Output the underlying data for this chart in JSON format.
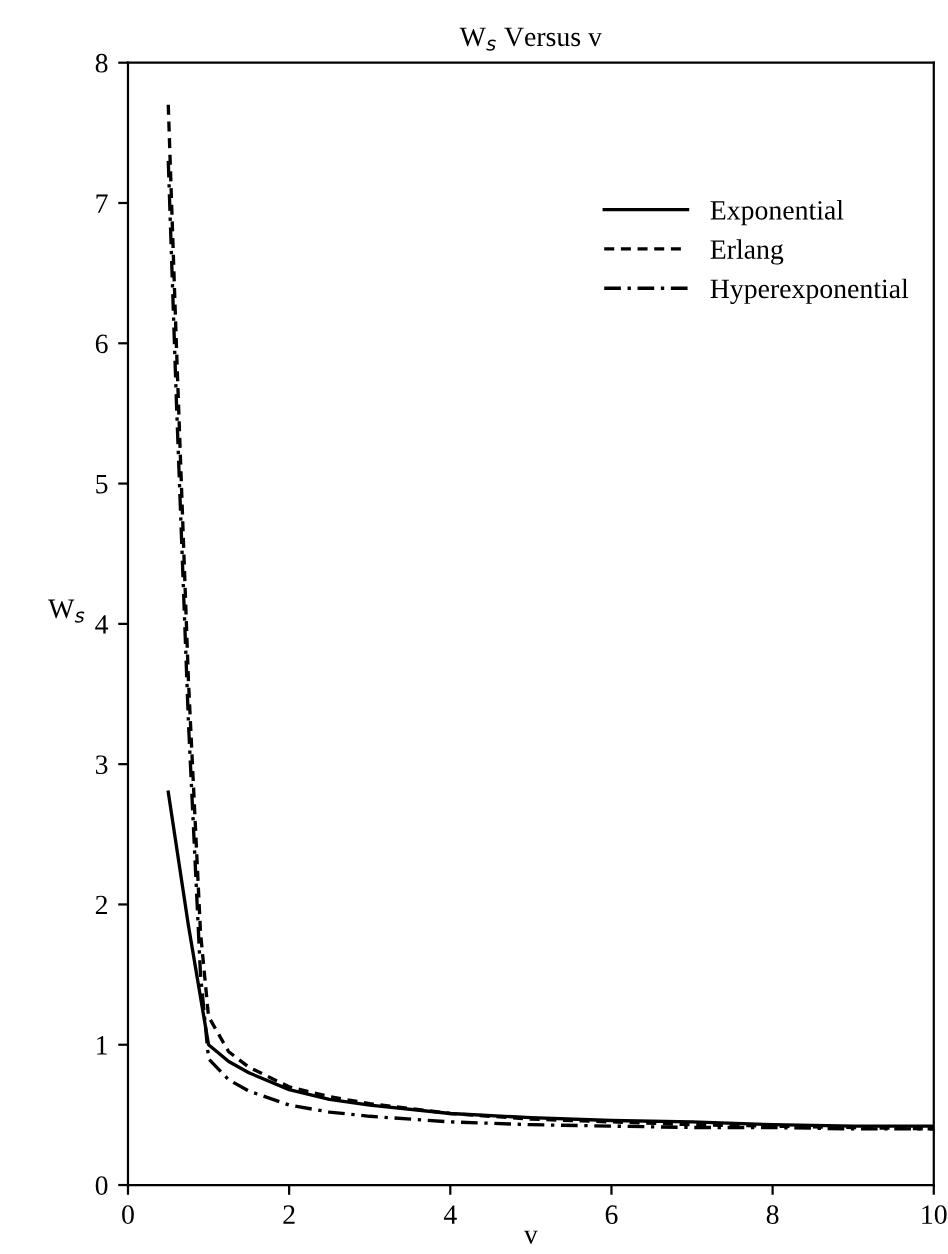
{
  "chart_data": {
    "type": "line",
    "title": "W$_{s}$ Versus v",
    "xlabel": "v",
    "ylabel": "W$_{s}$",
    "xlim": [
      0,
      10
    ],
    "ylim": [
      0,
      8
    ],
    "xticks": [
      0,
      2,
      4,
      6,
      8,
      10
    ],
    "yticks": [
      0,
      1,
      2,
      3,
      4,
      5,
      6,
      7,
      8
    ],
    "grid": false,
    "legend": "top right",
    "series": [
      {
        "name": "Exponential",
        "color": "#000000",
        "line_style": "solid",
        "x": [
          0.5,
          0.75,
          1,
          1.25,
          1.5,
          2,
          2.5,
          3,
          4,
          5,
          6,
          7,
          8,
          9,
          10
        ],
        "values": [
          2.8,
          1.85,
          1.0,
          0.88,
          0.8,
          0.68,
          0.61,
          0.57,
          0.51,
          0.48,
          0.46,
          0.45,
          0.43,
          0.42,
          0.42
        ]
      },
      {
        "name": "Erlang",
        "color": "#000000",
        "line_style": "dashed",
        "x": [
          0.5,
          0.6,
          0.75,
          0.9,
          1,
          1.25,
          1.5,
          2,
          2.5,
          3,
          4,
          5,
          6,
          7,
          8,
          9,
          10
        ],
        "values": [
          7.7,
          6.0,
          3.6,
          1.8,
          1.2,
          0.95,
          0.84,
          0.7,
          0.63,
          0.58,
          0.51,
          0.47,
          0.45,
          0.43,
          0.42,
          0.41,
          0.4
        ]
      },
      {
        "name": "Hyperexponential",
        "color": "#000000",
        "line_style": "dashdot",
        "x": [
          0.5,
          0.6,
          0.75,
          0.9,
          1,
          1.25,
          1.5,
          2,
          2.5,
          3,
          4,
          5,
          6,
          7,
          8,
          9,
          10
        ],
        "values": [
          7.3,
          5.6,
          3.3,
          1.5,
          0.9,
          0.75,
          0.67,
          0.57,
          0.52,
          0.49,
          0.45,
          0.43,
          0.42,
          0.41,
          0.41,
          0.4,
          0.4
        ]
      }
    ]
  }
}
